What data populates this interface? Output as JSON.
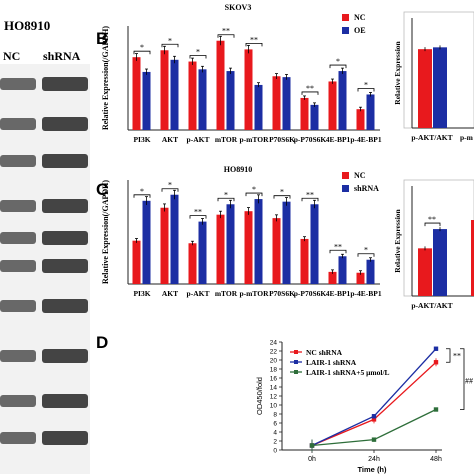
{
  "header": {
    "partial_cell_line": "HO8910",
    "lane_nc": "NC",
    "lane_shrna": "shRNA"
  },
  "panel_letters": {
    "b": "B",
    "c": "C",
    "d": "D"
  },
  "colors": {
    "red": "#e8191d",
    "blue": "#1c2ea3",
    "green": "#2e6e3a",
    "black": "#222222"
  },
  "chart_data": [
    {
      "panel": "B",
      "type": "bar",
      "title": "SKOV3",
      "ylabel": "Relative Expression(/GAPDH)",
      "ylim": [
        0,
        1.2
      ],
      "categories": [
        "PI3K",
        "AKT",
        "p-AKT",
        "mTOR",
        "p-mTOR",
        "P70S6K",
        "p-P70S6K",
        "4E-BP1",
        "p-4E-BP1"
      ],
      "legend_position": "top-right",
      "series": [
        {
          "name": "NC",
          "color": "#e8191d",
          "values": [
            0.84,
            0.92,
            0.79,
            1.03,
            0.93,
            0.62,
            0.37,
            0.56,
            0.24
          ]
        },
        {
          "name": "OE",
          "color": "#1c2ea3",
          "values": [
            0.67,
            0.81,
            0.7,
            0.68,
            0.52,
            0.61,
            0.29,
            0.68,
            0.41
          ]
        }
      ],
      "significance": [
        "*",
        "*",
        "*",
        "**",
        "**",
        "",
        "**",
        "*",
        "*"
      ]
    },
    {
      "panel": "B-right",
      "type": "bar",
      "ylabel": "Relative Expression",
      "ylim": [
        0,
        1.2
      ],
      "categories": [
        "p-AKT/AKT"
      ],
      "series": [
        {
          "color": "#e8191d",
          "values": [
            0.86
          ]
        },
        {
          "color": "#1c2ea3",
          "values": [
            0.88
          ]
        }
      ],
      "partial_label": "p-m"
    },
    {
      "panel": "C",
      "type": "bar",
      "title": "HO8910",
      "ylabel": "Relative Expression(/GAPDH)",
      "ylim": [
        0,
        1.2
      ],
      "categories": [
        "PI3K",
        "AKT",
        "p-AKT",
        "mTOR",
        "p-mTOR",
        "P70S6K",
        "p-P70S6K",
        "4E-BP1",
        "p-4E-BP1"
      ],
      "legend_position": "top-right",
      "series": [
        {
          "name": "NC",
          "color": "#e8191d",
          "values": [
            0.5,
            0.88,
            0.47,
            0.8,
            0.84,
            0.76,
            0.52,
            0.14,
            0.13
          ]
        },
        {
          "name": "shRNA",
          "color": "#1c2ea3",
          "values": [
            0.96,
            1.03,
            0.72,
            0.92,
            0.98,
            0.95,
            0.92,
            0.32,
            0.28
          ]
        }
      ],
      "significance": [
        "*",
        "*",
        "**",
        "*",
        "*",
        "*",
        "**",
        "**",
        "*"
      ]
    },
    {
      "panel": "C-right",
      "type": "bar",
      "ylabel": "Relative Expression",
      "ylim": [
        0,
        1.2
      ],
      "categories": [
        "p-AKT/AKT"
      ],
      "series": [
        {
          "color": "#e8191d",
          "values": [
            0.52
          ]
        },
        {
          "color": "#1c2ea3",
          "values": [
            0.73
          ]
        }
      ],
      "significance": [
        "**"
      ]
    },
    {
      "panel": "D",
      "type": "line",
      "xlabel": "Time (h)",
      "ylabel": "OD450/fold",
      "x": [
        "0h",
        "24h",
        "48h"
      ],
      "ylim": [
        0,
        24
      ],
      "yticks": [
        0,
        2,
        4,
        6,
        8,
        10,
        12,
        14,
        16,
        18,
        20,
        22,
        24
      ],
      "legend_position": "top-left",
      "series": [
        {
          "name": "NC shRNA",
          "color": "#e8191d",
          "values": [
            1.0,
            6.8,
            19.5
          ]
        },
        {
          "name": "LAIR-1 shRNA",
          "color": "#1c2ea3",
          "values": [
            1.0,
            7.5,
            22.5
          ]
        },
        {
          "name": "LAIR-1 shRNA+5 μmol/L",
          "color": "#2e6e3a",
          "values": [
            1.0,
            2.3,
            9.0
          ]
        }
      ],
      "annotations": [
        "**",
        "##"
      ]
    }
  ]
}
